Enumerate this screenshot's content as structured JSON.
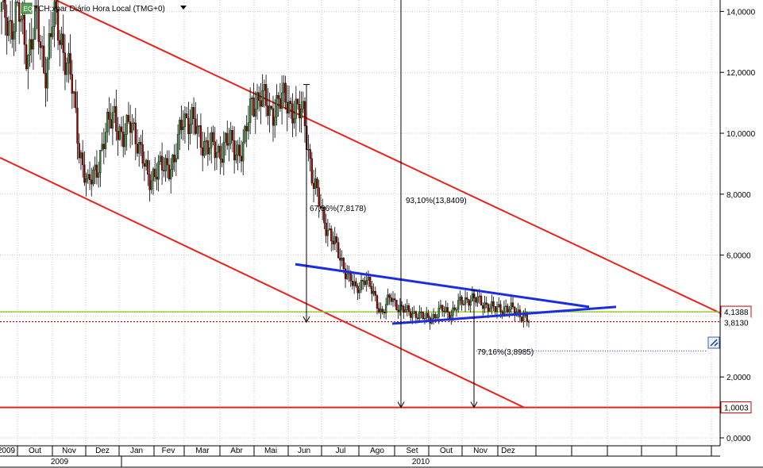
{
  "chart_data": {
    "type": "line",
    "title": "TCH:xpar Diário Hora Local (TMG+0)",
    "ylim": [
      0,
      14.5
    ],
    "grid": true,
    "y_ticks": [
      "0,0000",
      "2,0000",
      "4,0000",
      "6,0000",
      "8,0000",
      "10,0000",
      "12,0000",
      "14,0000"
    ],
    "y_tick_values": [
      0,
      2,
      4,
      6,
      8,
      10,
      12,
      14
    ],
    "x_month_labels": [
      "2009",
      "Out",
      "Nov",
      "Dez",
      "Jan",
      "Fev",
      "Mar",
      "Abr",
      "Mai",
      "Jun",
      "Jul",
      "Ago",
      "Set",
      "Out",
      "Nov",
      "Dez"
    ],
    "x_year_labels": [
      "2009",
      "2010"
    ],
    "series": [
      {
        "values": [
          14.0,
          13.6,
          13.9,
          12.6,
          13.7,
          12.0,
          13.8,
          13.0,
          11.8,
          9.5,
          8.2,
          8.9,
          9.9,
          10.8,
          9.6,
          10.6,
          9.3,
          8.6,
          8.7,
          9.0,
          9.0,
          10.6,
          10.4,
          9.8,
          9.6,
          9.3,
          9.8,
          9.4,
          9.6,
          11.0,
          11.3,
          10.6,
          11.1,
          11.0,
          10.8,
          10.5,
          8.5,
          7.4,
          6.7,
          6.0,
          5.4,
          4.8,
          5.3,
          4.7,
          4.1,
          4.6,
          4.3,
          4.1,
          4.1,
          3.9,
          4.0,
          4.2,
          4.1,
          4.4,
          4.6,
          4.5,
          4.4,
          4.2,
          4.3,
          4.2,
          4.1,
          3.8
        ]
      }
    ],
    "horizontal_lines": [
      {
        "label": "4,1388",
        "value": 4.1388
      },
      {
        "label": "3,8130",
        "value": 3.813
      },
      {
        "label": "1,0003",
        "value": 1.0003
      }
    ],
    "annotations": [
      "67,36%(7,8178)",
      "93,10%(13,8409)",
      "79,16%(3,8985)"
    ]
  },
  "colors": {
    "candle_up": "#2e7d32",
    "candle_down": "#8b0000",
    "channel": "#e8221a",
    "triangle": "#1a2ee0",
    "support_line": "#9acd32",
    "price_line": "#cc0000",
    "label_border": "#cc0000",
    "grid": "#c8c8c8"
  },
  "icons": {
    "header_badge": "eq-badge-icon",
    "dropdown": "dropdown-triangle-icon",
    "corner_tool": "pencil-tool-icon"
  }
}
